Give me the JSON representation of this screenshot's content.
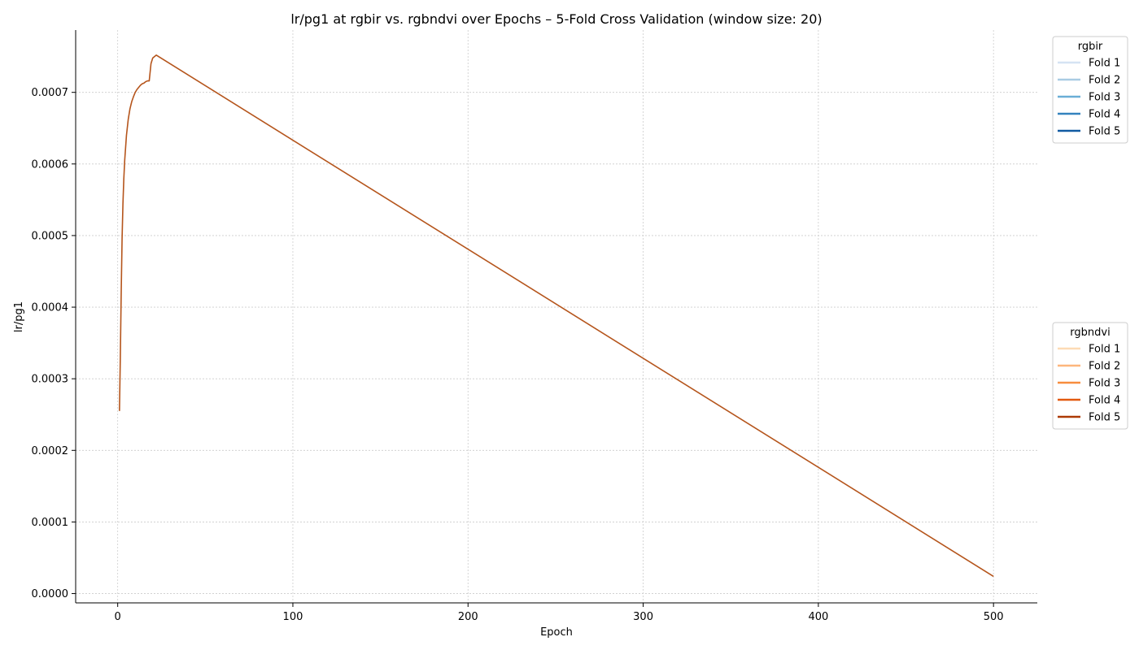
{
  "chart_data": {
    "type": "line",
    "title": "lr/pg1 at rgbir vs. rgbndvi over Epochs – 5-Fold Cross Validation (window size: 20)",
    "xlabel": "Epoch",
    "ylabel": "lr/pg1",
    "xlim": [
      -24,
      525
    ],
    "ylim": [
      -1.3e-05,
      0.000787
    ],
    "xticks": [
      0,
      100,
      200,
      300,
      400,
      500
    ],
    "yticks": [
      0.0,
      0.0001,
      0.0002,
      0.0003,
      0.0004,
      0.0005,
      0.0006,
      0.0007
    ],
    "ytick_labels": [
      "0.0000",
      "0.0001",
      "0.0002",
      "0.0003",
      "0.0004",
      "0.0005",
      "0.0006",
      "0.0007"
    ],
    "grid": true,
    "x": [
      1,
      1.5,
      2,
      2.5,
      3,
      3.5,
      4,
      5,
      6,
      7,
      8,
      9,
      10,
      11,
      12,
      13,
      14,
      15,
      16,
      17,
      18,
      19,
      20,
      21,
      22,
      500
    ],
    "y": [
      0.000255,
      0.00033,
      0.00042,
      0.000495,
      0.000545,
      0.00058,
      0.000605,
      0.00064,
      0.000662,
      0.000677,
      0.000687,
      0.000694,
      0.0007,
      0.000704,
      0.000707,
      0.00071,
      0.000712,
      0.000713,
      0.000715,
      0.000716,
      0.000716,
      0.00074,
      0.000748,
      0.00075,
      0.000752,
      2.4e-05
    ],
    "legends": [
      {
        "title": "rgbir",
        "placement": "upper-right",
        "entries": [
          {
            "name": "Fold 1",
            "color": "#d5e3f3"
          },
          {
            "name": "Fold 2",
            "color": "#a9cce3"
          },
          {
            "name": "Fold 3",
            "color": "#6aaed6"
          },
          {
            "name": "Fold 4",
            "color": "#3383be"
          },
          {
            "name": "Fold 5",
            "color": "#115aa2"
          }
        ]
      },
      {
        "title": "rgbndvi",
        "placement": "center-right",
        "entries": [
          {
            "name": "Fold 1",
            "color": "#fddbb5"
          },
          {
            "name": "Fold 2",
            "color": "#fdb67c"
          },
          {
            "name": "Fold 3",
            "color": "#f78d3e"
          },
          {
            "name": "Fold 4",
            "color": "#e2590f"
          },
          {
            "name": "Fold 5",
            "color": "#ad3a04"
          }
        ]
      }
    ],
    "line_color": "#b5551c"
  }
}
